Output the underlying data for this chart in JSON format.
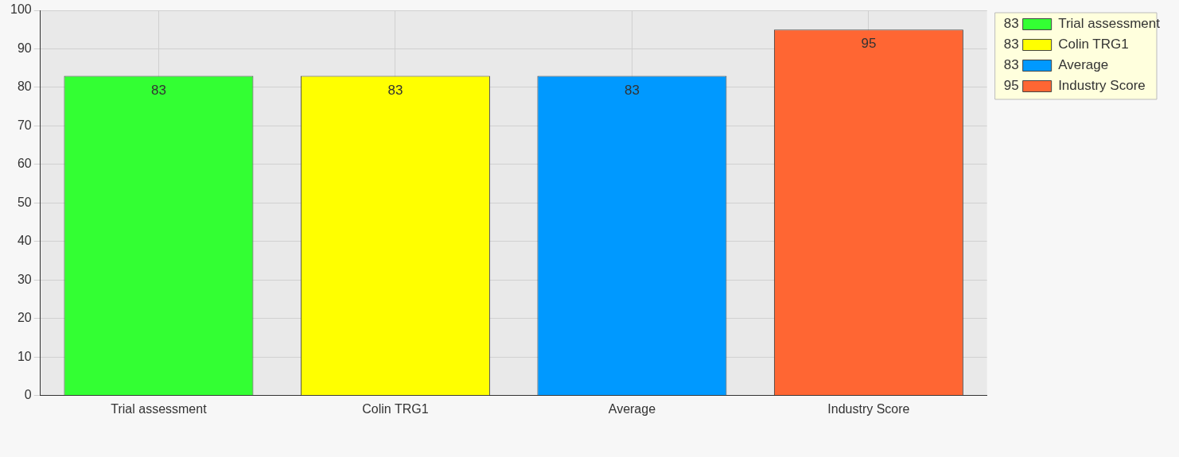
{
  "chart_data": {
    "type": "bar",
    "categories": [
      "Trial assessment",
      "Colin TRG1",
      "Average",
      "Industry Score"
    ],
    "series": [
      {
        "name": "Trial assessment",
        "color": "#33ff33",
        "values": [
          83,
          null,
          null,
          null
        ]
      },
      {
        "name": "Colin TRG1",
        "color": "#ffff00",
        "values": [
          null,
          83,
          null,
          null
        ]
      },
      {
        "name": "Average",
        "color": "#0099ff",
        "values": [
          null,
          null,
          83,
          null
        ]
      },
      {
        "name": "Industry Score",
        "color": "#ff6633",
        "values": [
          null,
          null,
          null,
          95
        ]
      }
    ],
    "ylim": [
      0,
      100
    ],
    "yticks": [
      0,
      10,
      20,
      30,
      40,
      50,
      60,
      70,
      80,
      90,
      100
    ],
    "annotations": [
      "83",
      "83",
      "83",
      "95"
    ],
    "grid": true,
    "data_labels": true,
    "legend": "top right"
  }
}
